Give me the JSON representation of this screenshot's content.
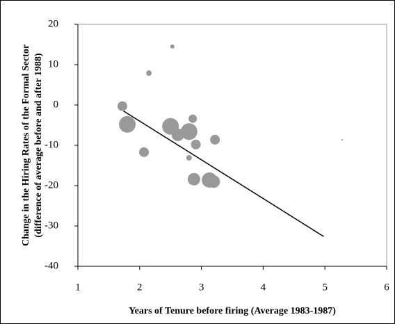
{
  "chart_data": {
    "type": "scatter",
    "x_label": "Years of Tenure before firing (Average 1983-1987)",
    "y_label": [
      "Change in the Hiring Rates of the Formal Sector",
      "(difference of average before and after 1988)"
    ],
    "xlim": [
      1,
      6
    ],
    "xticks": [
      1,
      2,
      3,
      4,
      5,
      6
    ],
    "ylim": [
      -40,
      20
    ],
    "yticks": [
      -40,
      -30,
      -20,
      -10,
      0,
      10,
      20
    ],
    "series": [
      {
        "color": "#999999",
        "x": [
          1.72,
          1.8,
          2.15,
          2.07,
          2.53,
          2.5,
          2.62,
          2.8,
          2.86,
          2.8,
          2.91,
          2.88,
          3.13,
          3.2,
          3.22,
          5.28
        ],
        "y": [
          -0.3,
          -4.8,
          7.9,
          -11.7,
          14.5,
          -5.3,
          -7.4,
          -6.6,
          -3.4,
          -13.1,
          -9.8,
          -18.4,
          -18.6,
          -19,
          -8.6,
          -8.6
        ],
        "sizes": [
          7,
          12,
          4,
          7,
          3,
          12,
          9,
          12,
          6,
          4,
          7,
          9,
          11,
          9,
          7,
          1
        ]
      }
    ],
    "trendline": {
      "color": "#000000",
      "x": [
        1.74,
        4.98
      ],
      "y": [
        -1.5,
        -32.6
      ]
    }
  }
}
